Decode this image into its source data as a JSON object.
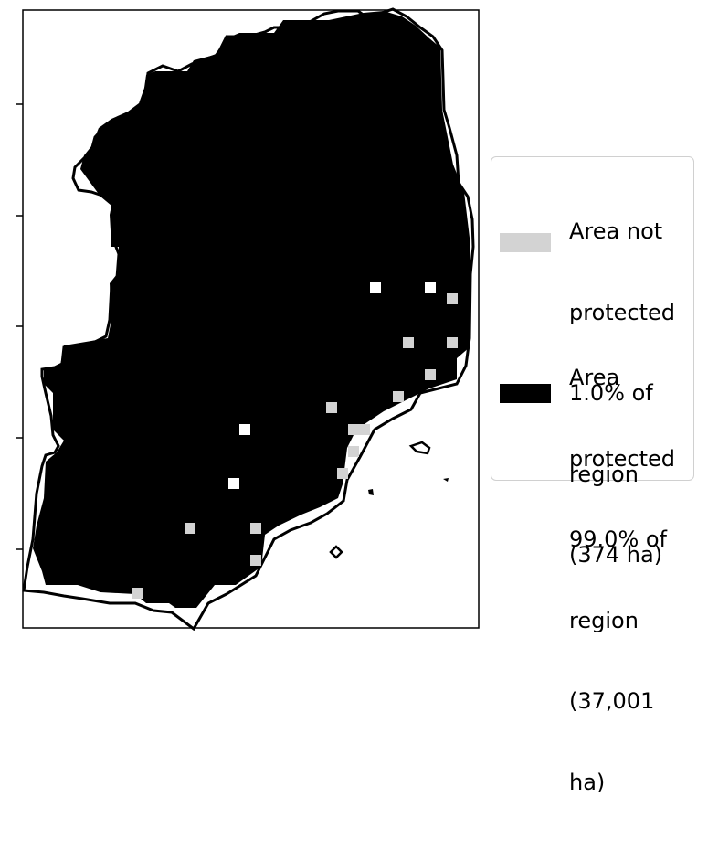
{
  "map": {
    "frame": true,
    "y_ticks": 5,
    "colors": {
      "protected": "#000000",
      "not_protected": "#d3d3d3",
      "outline": "#000000",
      "background": "#ffffff"
    }
  },
  "legend": {
    "items": [
      {
        "id": "not-protected",
        "color": "#d3d3d3",
        "lines": [
          "Area not",
          "protected",
          "1.0% of",
          "region",
          "(374 ha)"
        ]
      },
      {
        "id": "protected",
        "color": "#000000",
        "lines": [
          "Area",
          "protected",
          "99.0% of",
          "region",
          "(37,001",
          "ha)"
        ]
      }
    ]
  }
}
